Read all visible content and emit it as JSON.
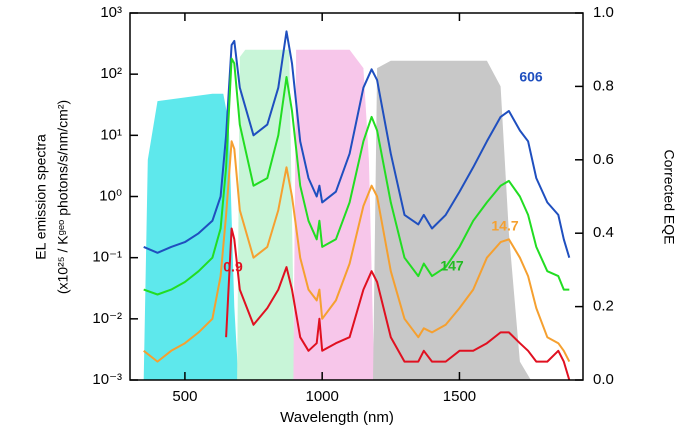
{
  "chart_data": {
    "type": "line",
    "x_label": "Wavelength (nm)",
    "y_label": [
      "EL emission spectra",
      "(x10²⁵ / Kᵍᵉᵒ photons/s/nm/cm²)"
    ],
    "y2_label": "Corrected EQE",
    "log_y": true,
    "xlim": [
      300,
      1950
    ],
    "xticks": [
      500,
      1000,
      1500
    ],
    "ylim": [
      0.001,
      1000
    ],
    "yticks": [
      {
        "value": 0.001,
        "label": "10⁻³"
      },
      {
        "value": 0.01,
        "label": "10⁻²"
      },
      {
        "value": 0.1,
        "label": "10⁻¹"
      },
      {
        "value": 1,
        "label": "10⁰"
      },
      {
        "value": 10,
        "label": "10¹"
      },
      {
        "value": 100,
        "label": "10²"
      },
      {
        "value": 1000,
        "label": "10³"
      }
    ],
    "y2lim": [
      0,
      1
    ],
    "y2ticks": [
      {
        "value": 0,
        "label": "0.0"
      },
      0.2,
      0.4,
      0.6,
      0.8,
      {
        "value": 1,
        "label": "1.0"
      }
    ],
    "x": [
      350,
      400,
      450,
      500,
      550,
      600,
      630,
      650,
      670,
      680,
      700,
      750,
      800,
      840,
      870,
      890,
      920,
      950,
      980,
      990,
      1000,
      1050,
      1100,
      1150,
      1180,
      1200,
      1250,
      1300,
      1350,
      1370,
      1400,
      1450,
      1500,
      1550,
      1600,
      1650,
      1680,
      1720,
      1750,
      1780,
      1820,
      1860,
      1880,
      1900
    ],
    "bands": [
      {
        "color": "#5ee8ec",
        "axis": "y2",
        "x": [
          350,
          365,
          400,
          600,
          640,
          660,
          680,
          695
        ],
        "values": [
          0,
          0.6,
          0.76,
          0.78,
          0.78,
          0.7,
          0.2,
          0
        ]
      },
      {
        "color": "#c8f5d8",
        "axis": "y2",
        "x": [
          690,
          700,
          720,
          880,
          900
        ],
        "values": [
          0,
          0.88,
          0.9,
          0.9,
          0
        ]
      },
      {
        "color": "#f7c6ea",
        "axis": "y2",
        "x": [
          895,
          905,
          1100,
          1150,
          1170,
          1190
        ],
        "values": [
          0,
          0.9,
          0.9,
          0.85,
          0.6,
          0
        ]
      },
      {
        "color": "#c8c8c8",
        "axis": "y2",
        "x": [
          1185,
          1200,
          1250,
          1600,
          1650,
          1680,
          1720,
          1760
        ],
        "values": [
          0,
          0.85,
          0.87,
          0.87,
          0.8,
          0.4,
          0.05,
          0
        ]
      }
    ],
    "series": [
      {
        "color": "#1f4fbf",
        "values": [
          0.15,
          0.12,
          0.15,
          0.18,
          0.25,
          0.4,
          1,
          10,
          300,
          350,
          60,
          10,
          15,
          60,
          500,
          150,
          8,
          2,
          1,
          1.5,
          0.8,
          1.2,
          5,
          60,
          120,
          80,
          5,
          0.5,
          0.35,
          0.5,
          0.3,
          0.5,
          1.2,
          3,
          8,
          20,
          25,
          12,
          8,
          2,
          0.8,
          0.5,
          0.2,
          0.1
        ]
      },
      {
        "color": "#22dd22",
        "values": [
          0.03,
          0.025,
          0.03,
          0.04,
          0.06,
          0.1,
          0.3,
          3,
          180,
          150,
          15,
          1.5,
          2,
          10,
          90,
          25,
          1.5,
          0.4,
          0.2,
          0.4,
          0.15,
          0.2,
          0.8,
          8,
          20,
          12,
          0.8,
          0.1,
          0.05,
          0.08,
          0.05,
          0.07,
          0.15,
          0.4,
          0.8,
          1.5,
          1.8,
          1,
          0.5,
          0.15,
          0.06,
          0.05,
          0.03,
          0.03
        ]
      },
      {
        "color": "#f5a030",
        "values": [
          0.003,
          0.002,
          0.003,
          0.004,
          0.006,
          0.01,
          0.05,
          0.5,
          8,
          6,
          0.6,
          0.1,
          0.15,
          0.6,
          3,
          1,
          0.1,
          0.03,
          0.02,
          0.03,
          0.01,
          0.02,
          0.08,
          0.7,
          1.5,
          1,
          0.06,
          0.01,
          0.005,
          0.007,
          0.006,
          0.008,
          0.015,
          0.03,
          0.1,
          0.18,
          0.2,
          0.1,
          0.05,
          0.015,
          0.005,
          0.004,
          0.003,
          0.002
        ]
      },
      {
        "color": "#e01020",
        "values": [
          null,
          null,
          null,
          null,
          null,
          null,
          null,
          0.005,
          0.3,
          0.2,
          0.03,
          0.008,
          0.015,
          0.03,
          0.07,
          0.03,
          0.005,
          0.003,
          0.004,
          0.01,
          0.003,
          0.004,
          0.005,
          0.03,
          0.06,
          0.04,
          0.005,
          0.002,
          0.002,
          0.003,
          0.002,
          0.002,
          0.003,
          0.003,
          0.004,
          0.006,
          0.006,
          0.004,
          0.003,
          0.002,
          0.002,
          0.003,
          0.002,
          0.001
        ]
      }
    ],
    "annotations": [
      {
        "text": "606",
        "color": "#1f4fbf"
      },
      {
        "text": "147",
        "color": "#22bb22"
      },
      {
        "text": "14.7",
        "color": "#f5a030"
      },
      {
        "text": "0.9",
        "color": "#e01020"
      }
    ]
  }
}
